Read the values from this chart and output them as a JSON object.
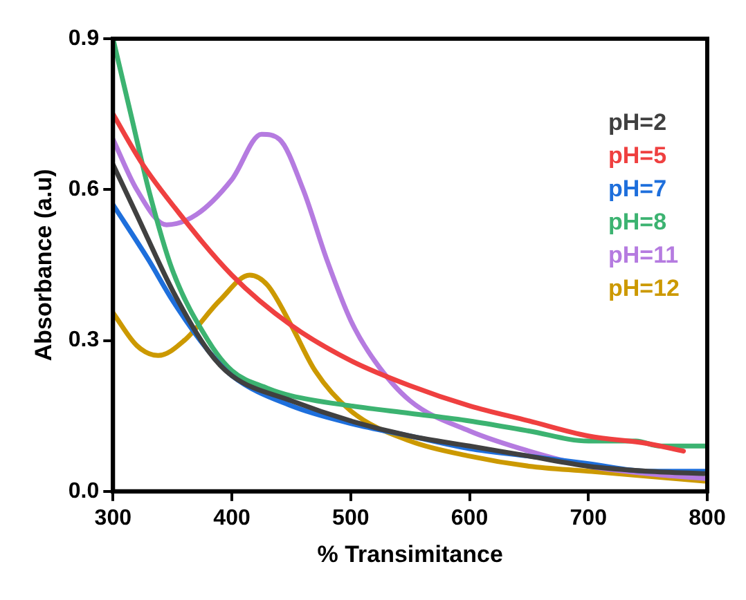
{
  "chart_data": {
    "type": "line",
    "xlabel": "% Transimitance",
    "ylabel": "Absorbance (a.u)",
    "xlim": [
      300,
      800
    ],
    "xticks": [
      300,
      400,
      500,
      600,
      700,
      800
    ],
    "ylim": [
      0,
      0.9
    ],
    "yticks": [
      {
        "value": 0,
        "label": "0.0"
      },
      0.3,
      0.6,
      0.9
    ],
    "grid": false,
    "legend": "top right",
    "marker": "none",
    "line_style": "solid",
    "series": [
      {
        "name": "pH=2",
        "color": "#404040",
        "x": [
          300,
          320,
          350,
          380,
          400,
          450,
          500,
          550,
          600,
          650,
          700,
          750,
          800
        ],
        "values": [
          0.65,
          0.55,
          0.4,
          0.28,
          0.23,
          0.18,
          0.14,
          0.11,
          0.09,
          0.07,
          0.05,
          0.04,
          0.035
        ]
      },
      {
        "name": "pH=5",
        "color": "#ef4040",
        "x": [
          300,
          325,
          350,
          400,
          450,
          500,
          550,
          600,
          650,
          700,
          750,
          780
        ],
        "values": [
          0.75,
          0.65,
          0.57,
          0.43,
          0.33,
          0.26,
          0.21,
          0.17,
          0.14,
          0.11,
          0.095,
          0.08
        ]
      },
      {
        "name": "pH=7",
        "color": "#1e6fdc",
        "x": [
          300,
          330,
          350,
          380,
          400,
          450,
          500,
          550,
          600,
          650,
          700,
          750,
          800
        ],
        "values": [
          0.57,
          0.46,
          0.38,
          0.28,
          0.23,
          0.17,
          0.135,
          0.11,
          0.085,
          0.07,
          0.055,
          0.04,
          0.04
        ]
      },
      {
        "name": "pH=8",
        "color": "#3cb371",
        "x": [
          300,
          315,
          330,
          350,
          380,
          400,
          430,
          450,
          500,
          550,
          600,
          650,
          700,
          740,
          760,
          800
        ],
        "values": [
          0.9,
          0.75,
          0.6,
          0.44,
          0.3,
          0.24,
          0.205,
          0.19,
          0.17,
          0.155,
          0.14,
          0.12,
          0.1,
          0.1,
          0.09,
          0.09
        ]
      },
      {
        "name": "pH=11",
        "color": "#b57be0",
        "x": [
          300,
          320,
          345,
          370,
          400,
          425,
          440,
          460,
          480,
          500,
          520,
          550,
          600,
          650,
          700,
          750,
          800
        ],
        "values": [
          0.7,
          0.6,
          0.53,
          0.55,
          0.62,
          0.71,
          0.7,
          0.6,
          0.46,
          0.34,
          0.26,
          0.18,
          0.12,
          0.08,
          0.05,
          0.035,
          0.025
        ]
      },
      {
        "name": "pH=12",
        "color": "#cc9900",
        "x": [
          300,
          320,
          338,
          360,
          390,
          415,
          430,
          450,
          470,
          500,
          550,
          600,
          650,
          700,
          750,
          800
        ],
        "values": [
          0.355,
          0.29,
          0.27,
          0.3,
          0.38,
          0.43,
          0.41,
          0.33,
          0.24,
          0.16,
          0.1,
          0.07,
          0.05,
          0.04,
          0.03,
          0.02
        ]
      }
    ]
  }
}
